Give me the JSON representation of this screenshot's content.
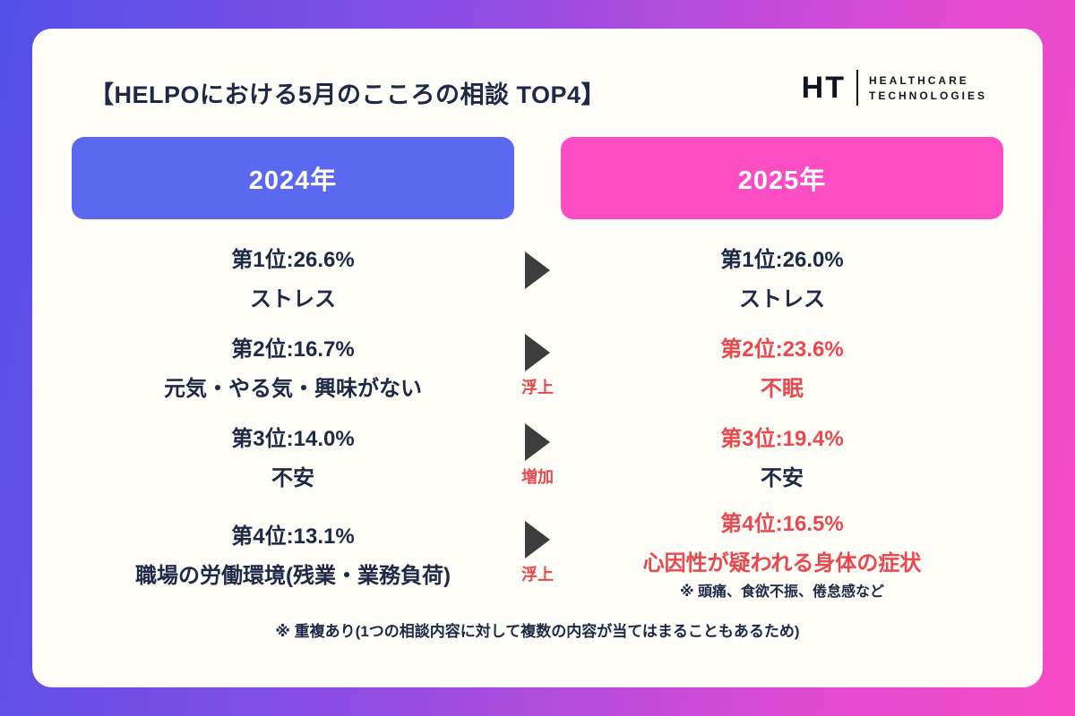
{
  "page_title": "【HELPOにおける5月のこころの相談 TOP4】",
  "logo": {
    "monogram": "HT",
    "line1": "HEALTHCARE",
    "line2": "TECHNOLOGIES"
  },
  "headers": {
    "left": "2024年",
    "right": "2025年"
  },
  "rows": [
    {
      "left": {
        "rank": "第1位:26.6%",
        "label": "ストレス"
      },
      "change": "",
      "right": {
        "rank": "第1位:26.0%",
        "label": "ストレス"
      }
    },
    {
      "left": {
        "rank": "第2位:16.7%",
        "label": "元気・やる気・興味がない"
      },
      "change": "浮上",
      "right": {
        "rank": "第2位:23.6%",
        "label": "不眠"
      }
    },
    {
      "left": {
        "rank": "第3位:14.0%",
        "label": "不安"
      },
      "change": "増加",
      "right": {
        "rank": "第3位:19.4%",
        "label": "不安"
      }
    },
    {
      "left": {
        "rank": "第4位:13.1%",
        "label": "職場の労働環境(残業・業務負荷)"
      },
      "change": "浮上",
      "right": {
        "rank": "第4位:16.5%",
        "label": "心因性が疑われる身体の症状",
        "note": "※ 頭痛、食欲不振、倦怠感など"
      }
    }
  ],
  "footnote": "※ 重複あり(1つの相談内容に対して複数の内容が当てはまることもあるため)",
  "colors": {
    "bar_2024": "#5b68f0",
    "bar_2025": "#fc4dc5",
    "highlight_red": "#e8484e",
    "text_navy": "#1d2946"
  },
  "chart_data": {
    "type": "table",
    "title": "【HELPOにおける5月のこころの相談 TOP4】",
    "columns": [
      "2024年",
      "2025年"
    ],
    "rows": [
      {
        "rank": 1,
        "y2024_category": "ストレス",
        "y2024_percent": 26.6,
        "y2025_category": "ストレス",
        "y2025_percent": 26.0,
        "change_note": ""
      },
      {
        "rank": 2,
        "y2024_category": "元気・やる気・興味がない",
        "y2024_percent": 16.7,
        "y2025_category": "不眠",
        "y2025_percent": 23.6,
        "change_note": "浮上"
      },
      {
        "rank": 3,
        "y2024_category": "不安",
        "y2024_percent": 14.0,
        "y2025_category": "不安",
        "y2025_percent": 19.4,
        "change_note": "増加"
      },
      {
        "rank": 4,
        "y2024_category": "職場の労働環境(残業・業務負荷)",
        "y2024_percent": 13.1,
        "y2025_category": "心因性が疑われる身体の症状",
        "y2025_percent": 16.5,
        "change_note": "浮上"
      }
    ],
    "footnotes": [
      "※ 頭痛、食欲不振、倦怠感など",
      "※ 重複あり(1つの相談内容に対して複数の内容が当てはまることもあるため)"
    ]
  }
}
